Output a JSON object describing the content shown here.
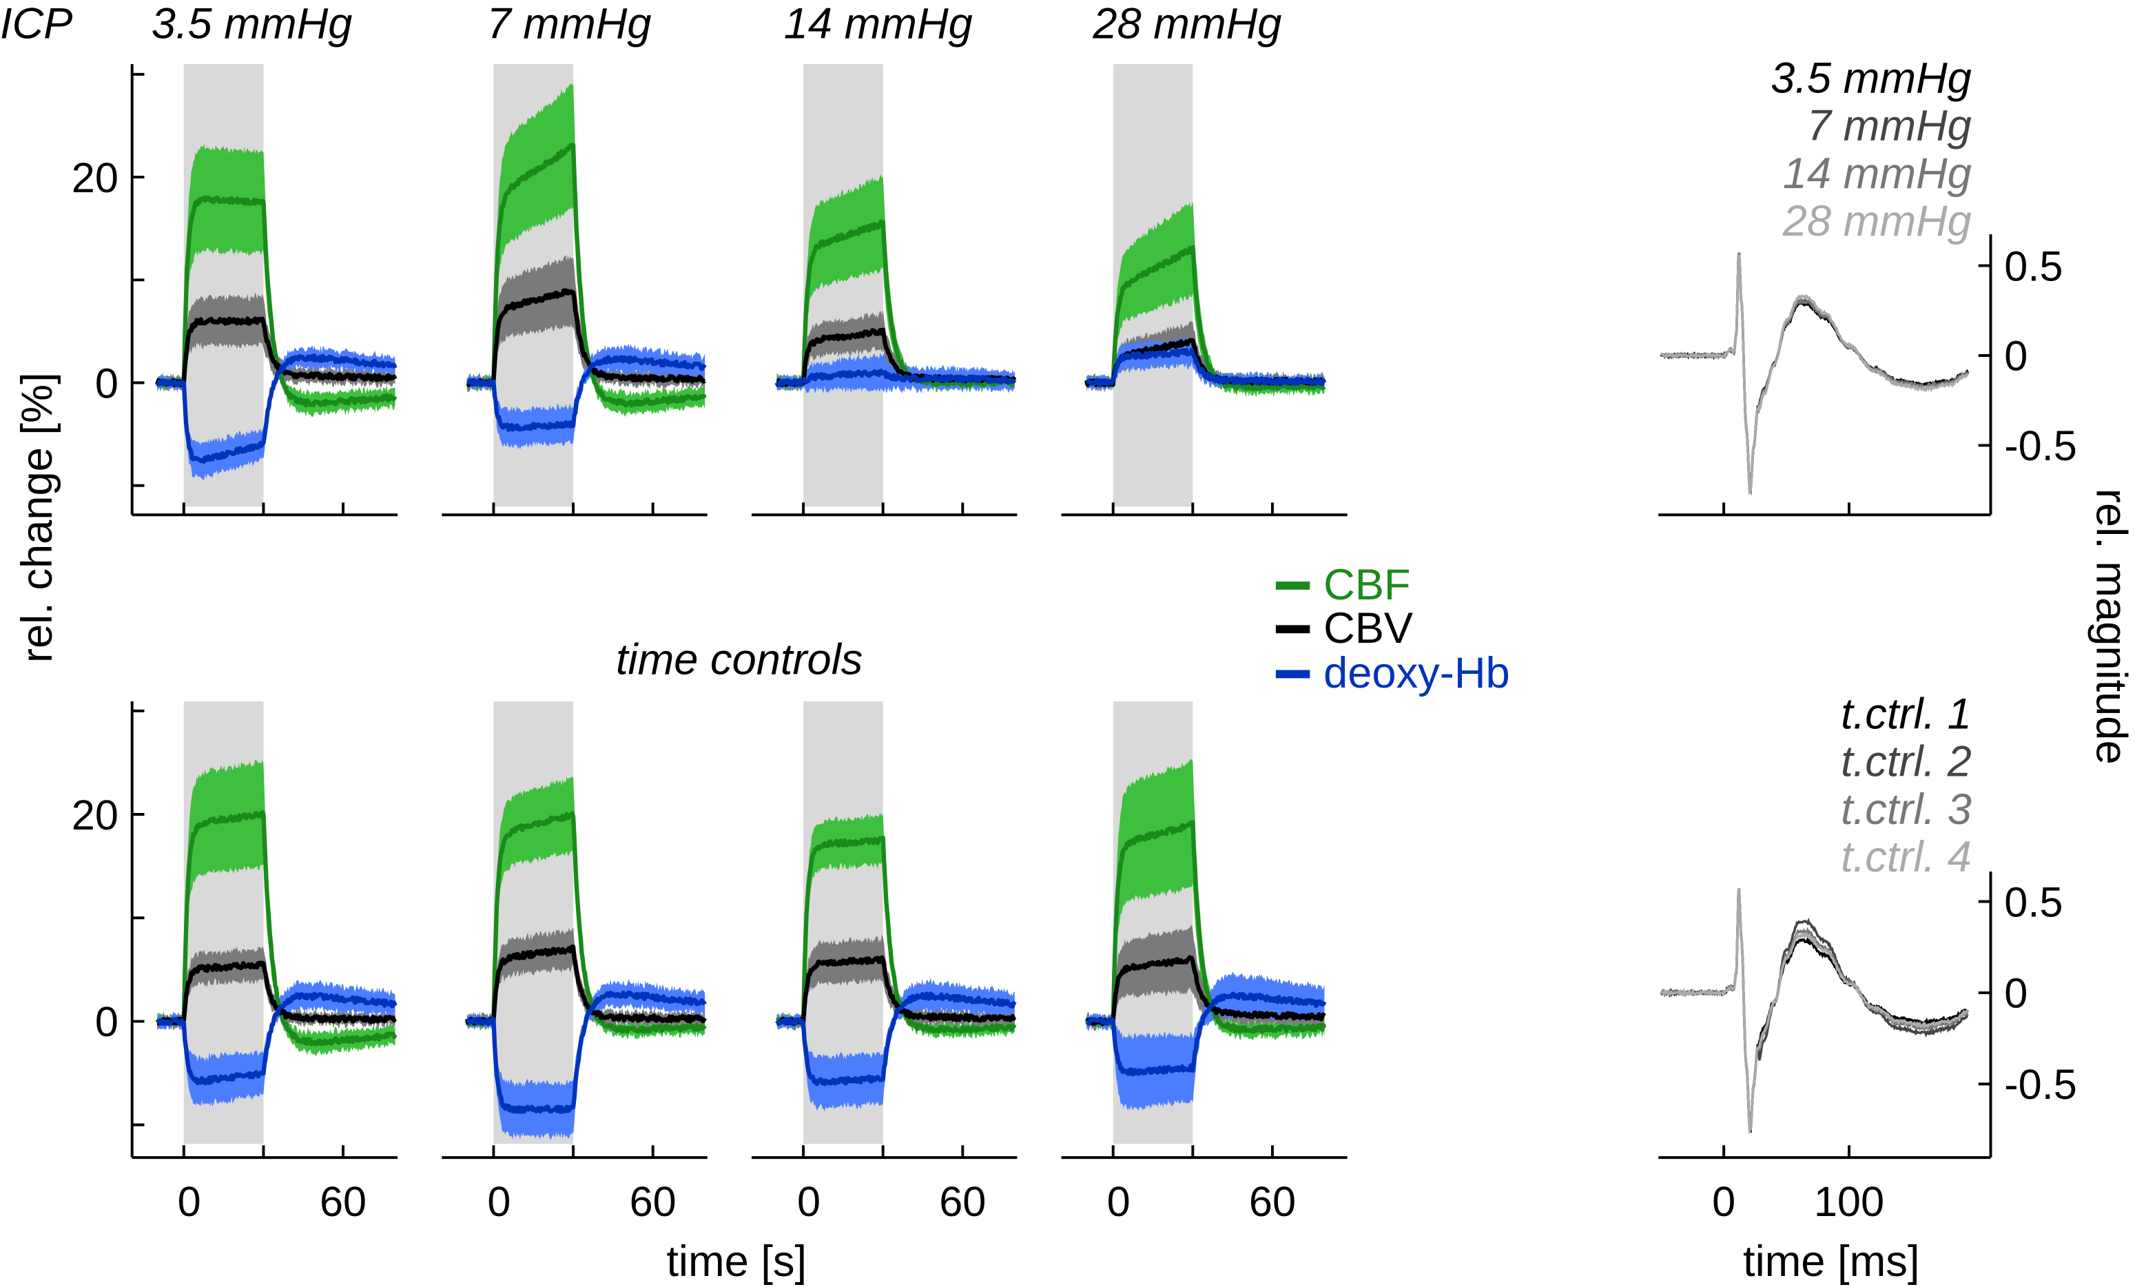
{
  "chart_data": {
    "type": "line",
    "row_label": "ICP",
    "middle_title": "time controls",
    "ylabel_left": "rel. change [%]",
    "xlabel_left": "time [s]",
    "ylabel_right": "rel. magnitude",
    "xlabel_right": "time [ms]",
    "left_xlim": [
      -10,
      80
    ],
    "left_ylim": [
      -12,
      31
    ],
    "left_yticks": [
      -10,
      0,
      10,
      20,
      30
    ],
    "left_ytick_labels": {
      "zero": "0",
      "twenty": "20"
    },
    "left_xticks": [
      0,
      30,
      60
    ],
    "left_xtick_labels": {
      "zero": "0",
      "sixty": "60"
    },
    "stimulus_interval_s": [
      0,
      30
    ],
    "legend": {
      "placement": "center",
      "items": [
        {
          "label": "CBF",
          "color": "#1a8a1a"
        },
        {
          "label": "CBV",
          "color": "#000000"
        },
        {
          "label": "deoxy-Hb",
          "color": "#0033bb"
        }
      ]
    },
    "colors": {
      "cbf_line": "#1a8a1a",
      "cbf_band": "#3ebf3e",
      "cbv_line": "#000000",
      "cbv_band": "#7a7a7a",
      "hb_line": "#0033bb",
      "hb_band": "#4d7dff",
      "stimulus": "#d9d9d9"
    },
    "rows": [
      {
        "panels": [
          {
            "title": "3.5 mmHg",
            "series": {
              "CBF": {
                "start": 18,
                "end": 17.5,
                "post": -2.5,
                "sem": 4.5
              },
              "CBV": {
                "start": 6,
                "end": 6,
                "post": 0.8,
                "sem": 1.8
              },
              "deoxy-Hb": {
                "start": -8,
                "end": -6,
                "post": 3,
                "sem": 1.2
              }
            }
          },
          {
            "title": "7 mmHg",
            "series": {
              "CBF": {
                "start": 18,
                "end": 23,
                "post": -2.5,
                "sem": 5.5
              },
              "CBV": {
                "start": 7,
                "end": 9,
                "post": 0.6,
                "sem": 2.8
              },
              "deoxy-Hb": {
                "start": -4.5,
                "end": -4,
                "post": 2.8,
                "sem": 1.3
              }
            }
          },
          {
            "title": "14 mmHg",
            "series": {
              "CBF": {
                "start": 13,
                "end": 15.5,
                "post": 0,
                "sem": 4
              },
              "CBV": {
                "start": 4,
                "end": 5,
                "post": 0.5,
                "sem": 1.2
              },
              "deoxy-Hb": {
                "start": 0.5,
                "end": 1,
                "post": 0.5,
                "sem": 1.2
              }
            }
          },
          {
            "title": "28 mmHg",
            "series": {
              "CBF": {
                "start": 9,
                "end": 13,
                "post": -0.5,
                "sem": 4
              },
              "CBV": {
                "start": 2.5,
                "end": 4,
                "post": 0.2,
                "sem": 1.2
              },
              "deoxy-Hb": {
                "start": 2.5,
                "end": 3,
                "post": 0.2,
                "sem": 0.8
              }
            }
          }
        ],
        "erp": {
          "xlim": [
            -52,
            197
          ],
          "ylim": [
            -0.85,
            0.72
          ],
          "yticks": [
            0.5,
            0,
            -0.5
          ],
          "ytick_labels": [
            "0.5",
            "0",
            "-0.5"
          ],
          "xticks": [
            0,
            100
          ],
          "series": [
            {
              "label": "3.5 mmHg",
              "color": "#000000",
              "late_gain": 0.95
            },
            {
              "label": "7 mmHg",
              "color": "#444444",
              "late_gain": 1.0
            },
            {
              "label": "14 mmHg",
              "color": "#777777",
              "late_gain": 1.0
            },
            {
              "label": "28 mmHg",
              "color": "#aaaaaa",
              "late_gain": 1.08
            }
          ]
        }
      },
      {
        "panels": [
          {
            "title": "",
            "series": {
              "CBF": {
                "start": 19,
                "end": 20,
                "post": -2.5,
                "sem": 4.5
              },
              "CBV": {
                "start": 5,
                "end": 5.5,
                "post": 0.3,
                "sem": 1
              },
              "deoxy-Hb": {
                "start": -6,
                "end": -5,
                "post": 3,
                "sem": 1.8
              }
            }
          },
          {
            "title": "",
            "series": {
              "CBF": {
                "start": 18,
                "end": 20,
                "post": -1,
                "sem": 3
              },
              "CBV": {
                "start": 6,
                "end": 7,
                "post": 0.4,
                "sem": 1.3
              },
              "deoxy-Hb": {
                "start": -8.5,
                "end": -8.5,
                "post": 3.2,
                "sem": 2
              }
            }
          },
          {
            "title": "",
            "series": {
              "CBF": {
                "start": 17,
                "end": 17.5,
                "post": -1,
                "sem": 1.8
              },
              "CBV": {
                "start": 5.5,
                "end": 6,
                "post": 0.5,
                "sem": 1.5
              },
              "deoxy-Hb": {
                "start": -6,
                "end": -5.5,
                "post": 3,
                "sem": 2
              }
            }
          },
          {
            "title": "",
            "series": {
              "CBF": {
                "start": 17,
                "end": 19,
                "post": -1,
                "sem": 5.5
              },
              "CBV": {
                "start": 5,
                "end": 6,
                "post": 0.8,
                "sem": 2.5
              },
              "deoxy-Hb": {
                "start": -5,
                "end": -4.5,
                "post": 3,
                "sem": 3
              }
            }
          }
        ],
        "erp": {
          "xlim": [
            -52,
            197
          ],
          "ylim": [
            -0.85,
            0.72
          ],
          "yticks": [
            0.5,
            0,
            -0.5
          ],
          "ytick_labels": [
            "0.5",
            "0",
            "-0.5"
          ],
          "xticks": [
            0,
            100
          ],
          "series": [
            {
              "label": "t.ctrl. 1",
              "color": "#000000",
              "late_gain": 0.95
            },
            {
              "label": "t.ctrl. 2",
              "color": "#444444",
              "late_gain": 1.3
            },
            {
              "label": "t.ctrl. 3",
              "color": "#777777",
              "late_gain": 1.12
            },
            {
              "label": "t.ctrl. 4",
              "color": "#aaaaaa",
              "late_gain": 1.05
            }
          ]
        }
      }
    ],
    "erp_xtick_labels": {
      "zero": "0",
      "hundred": "100"
    },
    "erp_waveform_ms_value": [
      [
        -50,
        0
      ],
      [
        0,
        0
      ],
      [
        5,
        0.03
      ],
      [
        8,
        0.02
      ],
      [
        10,
        0.12
      ],
      [
        12,
        0.58
      ],
      [
        14,
        0.3
      ],
      [
        18,
        -0.4
      ],
      [
        21,
        -0.76
      ],
      [
        24,
        -0.5
      ],
      [
        27,
        -0.3
      ],
      [
        32,
        -0.2
      ],
      [
        40,
        -0.05
      ],
      [
        50,
        0.18
      ],
      [
        60,
        0.3
      ],
      [
        66,
        0.3
      ],
      [
        80,
        0.22
      ],
      [
        100,
        0.05
      ],
      [
        120,
        -0.08
      ],
      [
        140,
        -0.15
      ],
      [
        160,
        -0.17
      ],
      [
        180,
        -0.15
      ],
      [
        195,
        -0.1
      ]
    ]
  }
}
